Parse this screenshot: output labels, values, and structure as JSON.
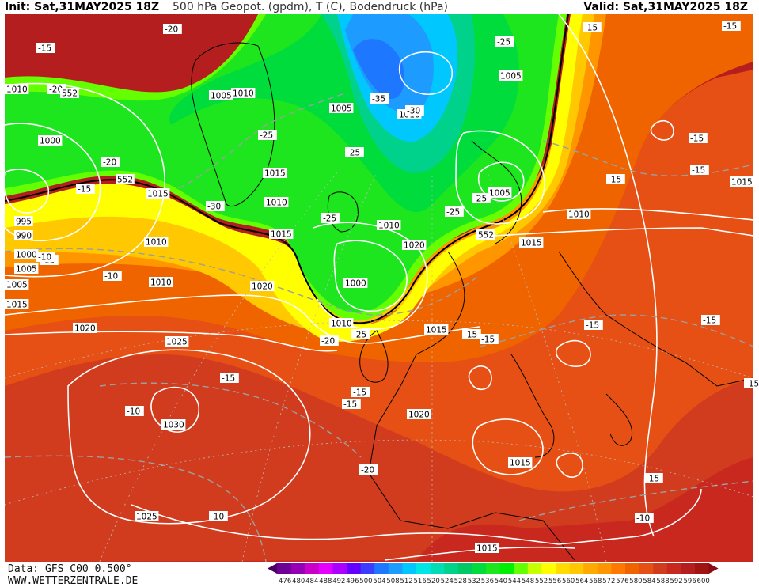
{
  "header": {
    "init": "Init: Sat,31MAY2025 18Z",
    "title": "500 hPa Geopot. (gpdm), T (C), Bodendruck (hPa)",
    "valid": "Valid: Sat,31MAY2025 18Z"
  },
  "footer": {
    "data_source": "Data: GFS C00 0.500°",
    "website": "WWW.WETTERZENTRALE.DE"
  },
  "colorbar": {
    "labels": [
      "476",
      "480",
      "484",
      "488",
      "492",
      "496",
      "500",
      "504",
      "508",
      "512",
      "516",
      "520",
      "524",
      "528",
      "532",
      "536",
      "540",
      "544",
      "548",
      "552",
      "556",
      "560",
      "564",
      "568",
      "572",
      "576",
      "580",
      "584",
      "588",
      "592",
      "596",
      "600"
    ],
    "colors": [
      "#4b0064",
      "#6e0096",
      "#9600b4",
      "#c800c8",
      "#e600ff",
      "#aa00ff",
      "#6400ff",
      "#3c3cff",
      "#1e78ff",
      "#1e9bff",
      "#00c8ff",
      "#00e6e6",
      "#00dcb4",
      "#00d28c",
      "#00c864",
      "#00dc3c",
      "#1ee61e",
      "#00f000",
      "#64ff00",
      "#c8ff00",
      "#ffff00",
      "#ffdc00",
      "#ffc800",
      "#ffaa00",
      "#ff9600",
      "#ff7800",
      "#f06400",
      "#e65014",
      "#d23c1e",
      "#c8281e",
      "#b41e1e",
      "#a01414",
      "#8c0a14"
    ]
  },
  "pressure_labels": [
    "1010",
    "1005",
    "1000",
    "995",
    "990",
    "1000",
    "1005",
    "1010",
    "1015",
    "1010",
    "1005",
    "1010",
    "1015",
    "1010",
    "1005",
    "1010",
    "1000",
    "1005",
    "1010",
    "1015",
    "1020",
    "1025",
    "1030",
    "1020",
    "1025",
    "1015",
    "1020",
    "1015",
    "1015",
    "1010",
    "1015",
    "1020",
    "1015",
    "1010",
    "1005",
    "1010",
    "1015"
  ],
  "temperature_labels": [
    "-15",
    "-20",
    "-25",
    "-20",
    "-15",
    "-20",
    "-15",
    "-25",
    "-35",
    "-30",
    "-25",
    "-30",
    "-25",
    "-25",
    "-25",
    "-20",
    "-15",
    "-25",
    "-20",
    "-10",
    "-15",
    "-15",
    "-10",
    "-15",
    "-15",
    "-15",
    "-10",
    "-10",
    "-15",
    "-10",
    "-15",
    "-15",
    "-15",
    "-15",
    "-15",
    "-10",
    "-15"
  ],
  "height_labels": [
    "552",
    "552",
    "552"
  ]
}
